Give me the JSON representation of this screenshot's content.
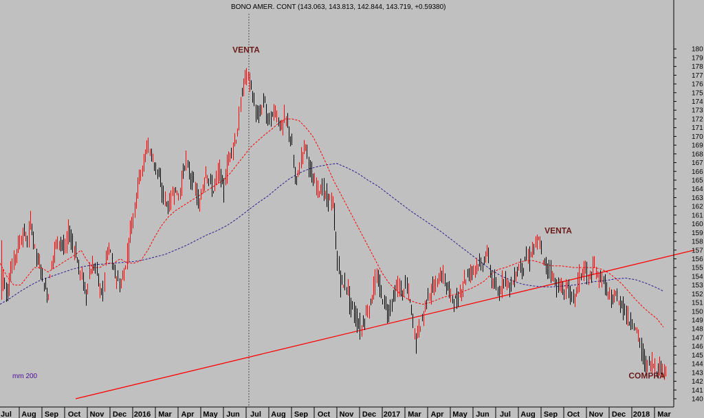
{
  "title": "BONO AMER. CONT (143.063, 143.813, 142.844, 143.719, +0.59380)",
  "colors": {
    "background": "#c0c0c0",
    "up_candle": "#ff0000",
    "down_candle": "#000000",
    "ma_short": "#ff0000",
    "ma_long": "#2a1a8c",
    "trendline": "#ff0000",
    "annotation": "#6b1a1a",
    "vline": "#555555"
  },
  "legend_label": "mm 200",
  "chart_data": {
    "type": "candlestick",
    "title": "BONO AMER. CONT (143.063, 143.813, 142.844, 143.719, +0.59380)",
    "ylim": [
      140,
      180.8
    ],
    "y_ticks": [
      140,
      141,
      142,
      143,
      144,
      145,
      146,
      147,
      148,
      149,
      150,
      151,
      152,
      153,
      154,
      155,
      156,
      157,
      158,
      159,
      160,
      161,
      162,
      163,
      164,
      165,
      166,
      167,
      168,
      169,
      170,
      171,
      172,
      173,
      174,
      175,
      176,
      177,
      178,
      179,
      180
    ],
    "x_labels": [
      "Jul",
      "Aug",
      "Sep",
      "Oct",
      "Nov",
      "Dec",
      "2016",
      "Mar",
      "Apr",
      "May",
      "Jun",
      "Jul",
      "Aug",
      "Sep",
      "Oct",
      "Nov",
      "Dec",
      "2017",
      "Mar",
      "Apr",
      "May",
      "Jun",
      "Jul",
      "Aug",
      "Sep",
      "Oct",
      "Nov",
      "Dec",
      "2018",
      "Mar"
    ],
    "price_path": [
      [
        0,
        150
      ],
      [
        5,
        154
      ],
      [
        10,
        152
      ],
      [
        15,
        154
      ],
      [
        20,
        155.5
      ],
      [
        25,
        157
      ],
      [
        30,
        158
      ],
      [
        35,
        159
      ],
      [
        40,
        158
      ],
      [
        45,
        160
      ],
      [
        50,
        158
      ],
      [
        55,
        156
      ],
      [
        60,
        155
      ],
      [
        65,
        153
      ],
      [
        70,
        152
      ],
      [
        75,
        155
      ],
      [
        80,
        157
      ],
      [
        85,
        158
      ],
      [
        90,
        158
      ],
      [
        95,
        157
      ],
      [
        100,
        159
      ],
      [
        105,
        158
      ],
      [
        110,
        157
      ],
      [
        115,
        155
      ],
      [
        120,
        154
      ],
      [
        125,
        152
      ],
      [
        130,
        154
      ],
      [
        135,
        155
      ],
      [
        140,
        155
      ],
      [
        145,
        153
      ],
      [
        150,
        152
      ],
      [
        155,
        156
      ],
      [
        160,
        157
      ],
      [
        165,
        155
      ],
      [
        170,
        154
      ],
      [
        175,
        153
      ],
      [
        180,
        154
      ],
      [
        185,
        156
      ],
      [
        190,
        159
      ],
      [
        195,
        161
      ],
      [
        200,
        164
      ],
      [
        205,
        166
      ],
      [
        210,
        167
      ],
      [
        215,
        169
      ],
      [
        220,
        168
      ],
      [
        225,
        167
      ],
      [
        230,
        166
      ],
      [
        235,
        164
      ],
      [
        240,
        163
      ],
      [
        245,
        162
      ],
      [
        250,
        163
      ],
      [
        255,
        164
      ],
      [
        260,
        163
      ],
      [
        265,
        165
      ],
      [
        270,
        167
      ],
      [
        275,
        166
      ],
      [
        280,
        165
      ],
      [
        285,
        164
      ],
      [
        290,
        162
      ],
      [
        295,
        164
      ],
      [
        300,
        166
      ],
      [
        305,
        165
      ],
      [
        310,
        164
      ],
      [
        315,
        165
      ],
      [
        320,
        166
      ],
      [
        325,
        164
      ],
      [
        330,
        166
      ],
      [
        335,
        168
      ],
      [
        340,
        169
      ],
      [
        345,
        170
      ],
      [
        350,
        173
      ],
      [
        355,
        176
      ],
      [
        360,
        177
      ],
      [
        365,
        176
      ],
      [
        370,
        174
      ],
      [
        375,
        172
      ],
      [
        380,
        173
      ],
      [
        385,
        174
      ],
      [
        390,
        172
      ],
      [
        395,
        172
      ],
      [
        400,
        173
      ],
      [
        405,
        172
      ],
      [
        410,
        171
      ],
      [
        415,
        172
      ],
      [
        420,
        171
      ],
      [
        425,
        169
      ],
      [
        430,
        165
      ],
      [
        435,
        166
      ],
      [
        440,
        168
      ],
      [
        445,
        169
      ],
      [
        450,
        167
      ],
      [
        455,
        165
      ],
      [
        460,
        164.5
      ],
      [
        465,
        164
      ],
      [
        470,
        164
      ],
      [
        475,
        163
      ],
      [
        480,
        163
      ],
      [
        485,
        162
      ],
      [
        490,
        157
      ],
      [
        495,
        154
      ],
      [
        500,
        153
      ],
      [
        505,
        153
      ],
      [
        510,
        151
      ],
      [
        515,
        150
      ],
      [
        520,
        149
      ],
      [
        525,
        148
      ],
      [
        530,
        149
      ],
      [
        535,
        150
      ],
      [
        540,
        151
      ],
      [
        545,
        153
      ],
      [
        550,
        153.5
      ],
      [
        555,
        152
      ],
      [
        560,
        151
      ],
      [
        565,
        150
      ],
      [
        570,
        151
      ],
      [
        575,
        152
      ],
      [
        580,
        153
      ],
      [
        585,
        152
      ],
      [
        590,
        153
      ],
      [
        595,
        152
      ],
      [
        600,
        149.5
      ],
      [
        605,
        147
      ],
      [
        610,
        148
      ],
      [
        615,
        149
      ],
      [
        620,
        151
      ],
      [
        625,
        152
      ],
      [
        630,
        152.5
      ],
      [
        635,
        153
      ],
      [
        640,
        154
      ],
      [
        645,
        154
      ],
      [
        650,
        153
      ],
      [
        655,
        152
      ],
      [
        660,
        151.5
      ],
      [
        665,
        151
      ],
      [
        670,
        152
      ],
      [
        675,
        153.5
      ],
      [
        680,
        154
      ],
      [
        685,
        154.5
      ],
      [
        690,
        155
      ],
      [
        695,
        155.5
      ],
      [
        700,
        155
      ],
      [
        705,
        156
      ],
      [
        710,
        156.5
      ],
      [
        715,
        154
      ],
      [
        720,
        153
      ],
      [
        725,
        152
      ],
      [
        730,
        153
      ],
      [
        735,
        154
      ],
      [
        740,
        153
      ],
      [
        745,
        153
      ],
      [
        750,
        154
      ],
      [
        755,
        155
      ],
      [
        760,
        155
      ],
      [
        765,
        156
      ],
      [
        770,
        156
      ],
      [
        775,
        157
      ],
      [
        780,
        157.5
      ],
      [
        785,
        158
      ],
      [
        790,
        156
      ],
      [
        795,
        155
      ],
      [
        800,
        155
      ],
      [
        805,
        154
      ],
      [
        810,
        153
      ],
      [
        815,
        153
      ],
      [
        820,
        152
      ],
      [
        825,
        153
      ],
      [
        830,
        152
      ],
      [
        835,
        151
      ],
      [
        840,
        153
      ],
      [
        845,
        154
      ],
      [
        850,
        155
      ],
      [
        855,
        154
      ],
      [
        860,
        154
      ],
      [
        865,
        155
      ],
      [
        870,
        154
      ],
      [
        875,
        154
      ],
      [
        880,
        153
      ],
      [
        885,
        152
      ],
      [
        890,
        151
      ],
      [
        895,
        152
      ],
      [
        900,
        151
      ],
      [
        905,
        151
      ],
      [
        910,
        150
      ],
      [
        915,
        149
      ],
      [
        920,
        149
      ],
      [
        925,
        148
      ],
      [
        930,
        147
      ],
      [
        935,
        145
      ],
      [
        940,
        144
      ],
      [
        945,
        144
      ],
      [
        950,
        144
      ],
      [
        955,
        143.5
      ],
      [
        960,
        143.5
      ],
      [
        965,
        143.5
      ],
      [
        968,
        143.7
      ]
    ],
    "ma_short_path": [
      [
        0,
        155.5
      ],
      [
        10,
        154
      ],
      [
        20,
        153
      ],
      [
        30,
        153
      ],
      [
        40,
        154
      ],
      [
        50,
        155
      ],
      [
        60,
        155
      ],
      [
        70,
        154.5
      ],
      [
        80,
        155
      ],
      [
        90,
        155.5
      ],
      [
        100,
        156
      ],
      [
        110,
        156.5
      ],
      [
        118,
        157
      ],
      [
        125,
        156
      ],
      [
        135,
        155
      ],
      [
        145,
        155
      ],
      [
        155,
        155.5
      ],
      [
        165,
        155.5
      ],
      [
        175,
        156
      ],
      [
        185,
        155.5
      ],
      [
        195,
        155.5
      ],
      [
        205,
        155.8
      ],
      [
        215,
        157
      ],
      [
        225,
        158.5
      ],
      [
        235,
        159.8
      ],
      [
        245,
        160.8
      ],
      [
        255,
        161.5
      ],
      [
        265,
        162
      ],
      [
        275,
        162.5
      ],
      [
        285,
        163
      ],
      [
        295,
        163.5
      ],
      [
        305,
        164
      ],
      [
        315,
        164.5
      ],
      [
        325,
        165
      ],
      [
        335,
        165.8
      ],
      [
        345,
        166.8
      ],
      [
        355,
        167.8
      ],
      [
        365,
        168.8
      ],
      [
        375,
        169.5
      ],
      [
        385,
        170.2
      ],
      [
        395,
        170.8
      ],
      [
        405,
        171.5
      ],
      [
        415,
        172
      ],
      [
        425,
        172
      ],
      [
        435,
        171.8
      ],
      [
        445,
        171
      ],
      [
        455,
        170
      ],
      [
        465,
        168.5
      ],
      [
        475,
        166.8
      ],
      [
        485,
        165
      ],
      [
        495,
        163.5
      ],
      [
        505,
        162
      ],
      [
        515,
        160.5
      ],
      [
        525,
        159
      ],
      [
        535,
        157.5
      ],
      [
        545,
        156
      ],
      [
        555,
        154.5
      ],
      [
        565,
        153.3
      ],
      [
        575,
        152.5
      ],
      [
        585,
        151.8
      ],
      [
        595,
        151.3
      ],
      [
        605,
        151
      ],
      [
        615,
        150.8
      ],
      [
        625,
        151
      ],
      [
        635,
        151.3
      ],
      [
        645,
        151.6
      ],
      [
        655,
        151.8
      ],
      [
        665,
        152
      ],
      [
        675,
        152.3
      ],
      [
        685,
        152.6
      ],
      [
        695,
        153
      ],
      [
        705,
        153.5
      ],
      [
        715,
        154.3
      ],
      [
        725,
        154.8
      ],
      [
        735,
        155
      ],
      [
        745,
        155.3
      ],
      [
        755,
        155.6
      ],
      [
        765,
        155.8
      ],
      [
        775,
        155.8
      ],
      [
        785,
        155.6
      ],
      [
        795,
        155.3
      ],
      [
        805,
        155.2
      ],
      [
        815,
        155.2
      ],
      [
        825,
        155.1
      ],
      [
        835,
        155
      ],
      [
        845,
        155
      ],
      [
        855,
        155
      ],
      [
        865,
        155
      ],
      [
        875,
        154.8
      ],
      [
        885,
        154.4
      ],
      [
        895,
        153.8
      ],
      [
        905,
        153.1
      ],
      [
        915,
        152.2
      ],
      [
        925,
        151.3
      ],
      [
        935,
        150.5
      ],
      [
        945,
        149.8
      ],
      [
        955,
        149.2
      ],
      [
        965,
        148.2
      ]
    ],
    "ma_long_path": [
      [
        0,
        150.8
      ],
      [
        15,
        151.5
      ],
      [
        30,
        152.3
      ],
      [
        45,
        153
      ],
      [
        60,
        153.6
      ],
      [
        75,
        154
      ],
      [
        90,
        154.4
      ],
      [
        105,
        154.8
      ],
      [
        120,
        155.1
      ],
      [
        135,
        155.3
      ],
      [
        150,
        155.4
      ],
      [
        165,
        155.5
      ],
      [
        180,
        155.6
      ],
      [
        195,
        155.7
      ],
      [
        210,
        155.9
      ],
      [
        225,
        156.2
      ],
      [
        240,
        156.5
      ],
      [
        255,
        157
      ],
      [
        270,
        157.5
      ],
      [
        285,
        158.1
      ],
      [
        300,
        158.7
      ],
      [
        315,
        159.2
      ],
      [
        330,
        159.8
      ],
      [
        345,
        160.6
      ],
      [
        360,
        161.5
      ],
      [
        375,
        162.4
      ],
      [
        390,
        163.2
      ],
      [
        405,
        164.2
      ],
      [
        420,
        165.1
      ],
      [
        435,
        165.8
      ],
      [
        450,
        166.3
      ],
      [
        465,
        166.6
      ],
      [
        480,
        166.8
      ],
      [
        490,
        166.9
      ],
      [
        505,
        166.4
      ],
      [
        520,
        165.8
      ],
      [
        535,
        165
      ],
      [
        550,
        164.3
      ],
      [
        565,
        163.4
      ],
      [
        580,
        162.5
      ],
      [
        595,
        161.6
      ],
      [
        610,
        160.8
      ],
      [
        625,
        160
      ],
      [
        640,
        159.2
      ],
      [
        655,
        158.3
      ],
      [
        670,
        157.4
      ],
      [
        685,
        156.5
      ],
      [
        700,
        155.6
      ],
      [
        715,
        154.7
      ],
      [
        730,
        154
      ],
      [
        745,
        153.5
      ],
      [
        760,
        153.1
      ],
      [
        775,
        152.9
      ],
      [
        790,
        152.8
      ],
      [
        805,
        152.8
      ],
      [
        820,
        152.9
      ],
      [
        835,
        153
      ],
      [
        850,
        153.2
      ],
      [
        865,
        153.4
      ],
      [
        880,
        153.5
      ],
      [
        895,
        153.7
      ],
      [
        910,
        153.8
      ],
      [
        925,
        153.6
      ],
      [
        940,
        153.2
      ],
      [
        955,
        152.7
      ],
      [
        965,
        152.3
      ]
    ],
    "trendline": [
      [
        110,
        140
      ],
      [
        1010,
        157
      ]
    ],
    "annotations": [
      {
        "text": "VENTA",
        "x": 358,
        "y": 179.6
      },
      {
        "text": "VENTA",
        "x": 812,
        "y": 158.9
      },
      {
        "text": "COMPRA",
        "x": 941,
        "y": 142.3
      }
    ],
    "vline_x": 362,
    "legend_label": "mm 200"
  }
}
